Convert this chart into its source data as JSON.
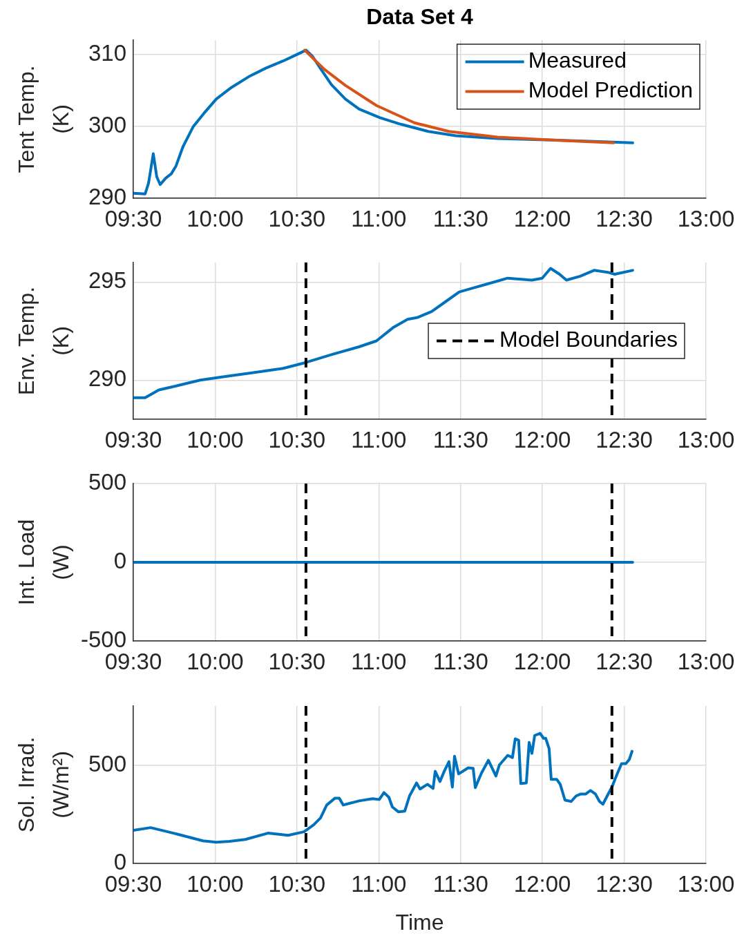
{
  "chart_data": [
    {
      "type": "line",
      "title": "Data Set 4",
      "ylabel": "Tent Temp.\n(K)",
      "xlim": [
        9.5,
        13
      ],
      "xticks": [
        {
          "value": 9.5,
          "label": "09:30"
        },
        {
          "value": 10,
          "label": "10:00"
        },
        {
          "value": 10.5,
          "label": "10:30"
        },
        {
          "value": 11,
          "label": "11:00"
        },
        {
          "value": 11.5,
          "label": "11:30"
        },
        {
          "value": 12,
          "label": "12:00"
        },
        {
          "value": 12.5,
          "label": "12:30"
        },
        {
          "value": 13,
          "label": "13:00"
        }
      ],
      "ylim": [
        290,
        312
      ],
      "yticks": [
        290,
        300,
        310
      ],
      "grid": true,
      "legend": "top right",
      "series": [
        {
          "name": "Measured",
          "color": "#0072bd",
          "x": [
            9.5,
            9.572,
            9.593,
            9.622,
            9.643,
            9.664,
            9.698,
            9.732,
            9.761,
            9.804,
            9.867,
            9.931,
            10.007,
            10.099,
            10.205,
            10.31,
            10.416,
            10.5,
            10.555,
            10.593,
            10.648,
            10.711,
            10.796,
            10.88,
            11.007,
            11.134,
            11.302,
            11.471,
            11.725,
            12.062,
            12.316,
            12.552
          ],
          "values": [
            290.7,
            290.6,
            292.1,
            296.2,
            293.0,
            291.9,
            292.8,
            293.4,
            294.5,
            297.2,
            300.0,
            301.8,
            303.8,
            305.4,
            306.9,
            308.1,
            309.1,
            310.0,
            310.6,
            309.8,
            307.9,
            305.8,
            303.8,
            302.4,
            301.2,
            300.3,
            299.3,
            298.7,
            298.3,
            298.1,
            297.9,
            297.7
          ]
        },
        {
          "name": "Model Prediction",
          "color": "#d95319",
          "x": [
            10.547,
            10.669,
            10.796,
            10.986,
            11.218,
            11.429,
            11.725,
            12.062,
            12.434
          ],
          "values": [
            310.6,
            307.9,
            305.7,
            302.9,
            300.5,
            299.3,
            298.5,
            298.1,
            297.7
          ]
        }
      ]
    },
    {
      "type": "line",
      "ylabel": "Env. Temp.\n(K)",
      "xlim": [
        9.5,
        13
      ],
      "xticks": [
        {
          "value": 9.5,
          "label": "09:30"
        },
        {
          "value": 10,
          "label": "10:00"
        },
        {
          "value": 10.5,
          "label": "10:30"
        },
        {
          "value": 11,
          "label": "11:00"
        },
        {
          "value": 11.5,
          "label": "11:30"
        },
        {
          "value": 12,
          "label": "12:00"
        },
        {
          "value": 12.5,
          "label": "12:30"
        },
        {
          "value": 13,
          "label": "13:00"
        }
      ],
      "ylim": [
        288,
        296
      ],
      "yticks": [
        290,
        295
      ],
      "grid": true,
      "legend": "right",
      "series": [
        {
          "color": "#0072bd",
          "x": [
            9.5,
            9.572,
            9.656,
            9.761,
            9.909,
            10.078,
            10.247,
            10.416,
            10.555,
            10.711,
            10.88,
            10.986,
            11.091,
            11.176,
            11.239,
            11.324,
            11.408,
            11.492,
            11.577,
            11.661,
            11.788,
            11.936,
            11.999,
            12.05,
            12.105,
            12.147,
            12.231,
            12.316,
            12.4,
            12.442,
            12.552
          ],
          "values": [
            289.1,
            289.1,
            289.5,
            289.7,
            290.0,
            290.2,
            290.4,
            290.6,
            290.9,
            291.3,
            291.7,
            292.0,
            292.7,
            293.1,
            293.2,
            293.5,
            294.0,
            294.5,
            294.7,
            294.9,
            295.2,
            295.1,
            295.2,
            295.7,
            295.4,
            295.1,
            295.3,
            295.6,
            295.5,
            295.4,
            295.6
          ]
        }
      ],
      "ref_lines": [
        {
          "axis": "x",
          "value": 10.555,
          "label": "Model Boundaries",
          "color": "#000000",
          "line_style": "dashed"
        },
        {
          "axis": "x",
          "value": 12.425,
          "color": "#000000",
          "line_style": "dashed"
        }
      ]
    },
    {
      "type": "line",
      "ylabel": "Int. Load\n(W)",
      "xlim": [
        9.5,
        13
      ],
      "xticks": [
        {
          "value": 9.5,
          "label": "09:30"
        },
        {
          "value": 10,
          "label": "10:00"
        },
        {
          "value": 10.5,
          "label": "10:30"
        },
        {
          "value": 11,
          "label": "11:00"
        },
        {
          "value": 11.5,
          "label": "11:30"
        },
        {
          "value": 12,
          "label": "12:00"
        },
        {
          "value": 12.5,
          "label": "12:30"
        },
        {
          "value": 13,
          "label": "13:00"
        }
      ],
      "ylim": [
        -500,
        500
      ],
      "yticks": [
        -500,
        0,
        500
      ],
      "grid": true,
      "series": [
        {
          "color": "#0072bd",
          "x": [
            9.5,
            12.552
          ],
          "values": [
            0,
            0
          ]
        }
      ],
      "ref_lines": [
        {
          "axis": "x",
          "value": 10.555,
          "color": "#000000",
          "line_style": "dashed"
        },
        {
          "axis": "x",
          "value": 12.425,
          "color": "#000000",
          "line_style": "dashed"
        }
      ]
    },
    {
      "type": "line",
      "ylabel": "Sol. Irrad.\n(W/m²)",
      "xlabel": "Time",
      "xlim": [
        9.5,
        13
      ],
      "xticks": [
        {
          "value": 9.5,
          "label": "09:30"
        },
        {
          "value": 10,
          "label": "10:00"
        },
        {
          "value": 10.5,
          "label": "10:30"
        },
        {
          "value": 11,
          "label": "11:00"
        },
        {
          "value": 11.5,
          "label": "11:30"
        },
        {
          "value": 12,
          "label": "12:00"
        },
        {
          "value": 12.5,
          "label": "12:30"
        },
        {
          "value": 13,
          "label": "13:00"
        }
      ],
      "ylim": [
        0,
        800
      ],
      "yticks": [
        0,
        500
      ],
      "grid": true,
      "series": [
        {
          "color": "#0072bd",
          "x": [
            9.5,
            9.606,
            9.745,
            9.926,
            10.007,
            10.087,
            10.184,
            10.323,
            10.446,
            10.543,
            10.602,
            10.644,
            10.682,
            10.733,
            10.758,
            10.783,
            10.88,
            10.961,
            11.003,
            11.032,
            11.062,
            11.083,
            11.121,
            11.159,
            11.188,
            11.231,
            11.252,
            11.298,
            11.332,
            11.345,
            11.374,
            11.4,
            11.429,
            11.45,
            11.463,
            11.488,
            11.547,
            11.577,
            11.59,
            11.627,
            11.67,
            11.716,
            11.737,
            11.788,
            11.817,
            11.834,
            11.855,
            11.868,
            11.902,
            11.919,
            11.936,
            11.953,
            11.986,
            12.007,
            12.02,
            12.041,
            12.054,
            12.088,
            12.109,
            12.138,
            12.176,
            12.206,
            12.235,
            12.265,
            12.294,
            12.324,
            12.349,
            12.37,
            12.396,
            12.425,
            12.455,
            12.484,
            12.51,
            12.531,
            12.548
          ],
          "values": [
            168,
            182,
            154,
            115,
            108,
            112,
            122,
            154,
            143,
            161,
            196,
            231,
            297,
            332,
            332,
            297,
            318,
            329,
            325,
            360,
            336,
            287,
            262,
            266,
            343,
            409,
            378,
            402,
            381,
            468,
            416,
            468,
            517,
            388,
            545,
            455,
            486,
            483,
            385,
            458,
            524,
            444,
            500,
            549,
            538,
            633,
            626,
            406,
            409,
            615,
            559,
            650,
            661,
            636,
            636,
            584,
            427,
            427,
            402,
            322,
            315,
            343,
            353,
            353,
            371,
            353,
            315,
            301,
            343,
            388,
            451,
            507,
            507,
            528,
            570
          ]
        }
      ],
      "ref_lines": [
        {
          "axis": "x",
          "value": 10.555,
          "color": "#000000",
          "line_style": "dashed"
        },
        {
          "axis": "x",
          "value": 12.425,
          "color": "#000000",
          "line_style": "dashed"
        }
      ]
    }
  ]
}
